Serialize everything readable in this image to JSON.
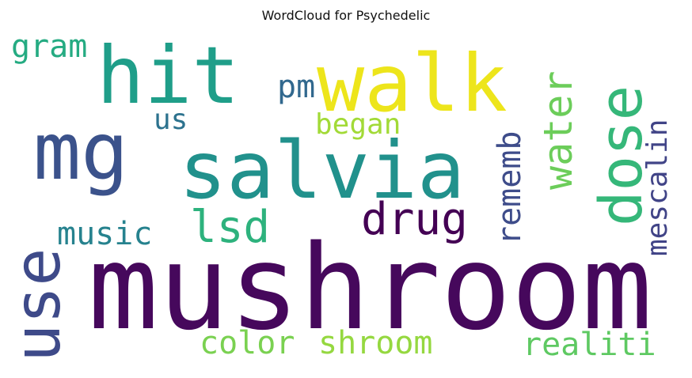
{
  "title": "WordCloud for Psychedelic",
  "words": [
    {
      "id": "mushroom",
      "text": "mushroom",
      "color": "#46085c"
    },
    {
      "id": "salvia",
      "text": "salvia",
      "color": "#21918c"
    },
    {
      "id": "walk",
      "text": "walk",
      "color": "#ede51b"
    },
    {
      "id": "hit",
      "text": "hit",
      "color": "#1f9e89"
    },
    {
      "id": "mg",
      "text": "mg",
      "color": "#3b528b"
    },
    {
      "id": "dose",
      "text": "dose",
      "color": "#35b779"
    },
    {
      "id": "use",
      "text": "use",
      "color": "#3e4a89"
    },
    {
      "id": "drug",
      "text": "drug",
      "color": "#440154"
    },
    {
      "id": "water",
      "text": "water",
      "color": "#6ccd5a"
    },
    {
      "id": "lsd",
      "text": "lsd",
      "color": "#2db27d"
    },
    {
      "id": "music",
      "text": "music",
      "color": "#26828e"
    },
    {
      "id": "rememb",
      "text": "rememb",
      "color": "#3e4c8a"
    },
    {
      "id": "mescalin",
      "text": "mescalin",
      "color": "#414487"
    },
    {
      "id": "pm",
      "text": "pm",
      "color": "#31688e"
    },
    {
      "id": "gram",
      "text": "gram",
      "color": "#25ab82"
    },
    {
      "id": "us",
      "text": "us",
      "color": "#2c728e"
    },
    {
      "id": "began",
      "text": "began",
      "color": "#a2da37"
    },
    {
      "id": "color",
      "text": "color",
      "color": "#7ad151"
    },
    {
      "id": "shroom",
      "text": "shroom",
      "color": "#95d840"
    },
    {
      "id": "realiti",
      "text": "realiti",
      "color": "#5ec962"
    }
  ]
}
